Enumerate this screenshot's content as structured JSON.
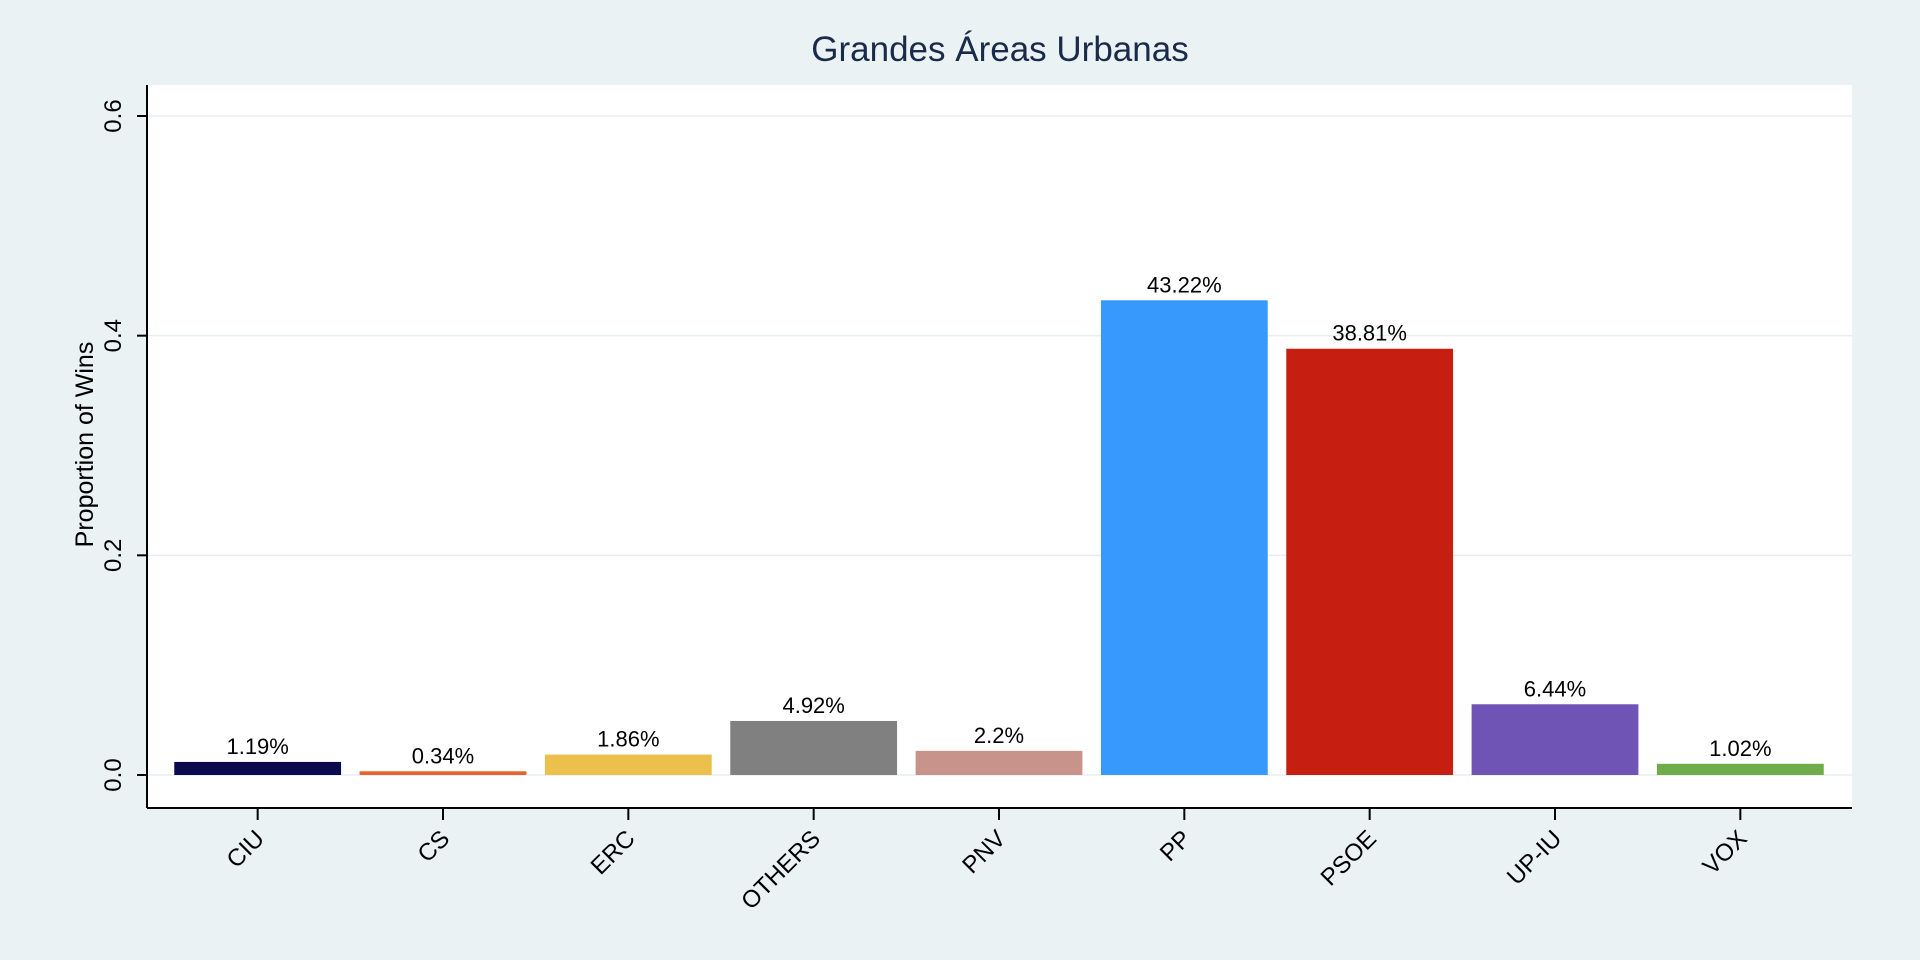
{
  "chart_data": {
    "type": "bar",
    "title": "Grandes Áreas Urbanas",
    "xlabel": "",
    "ylabel": "Proportion of Wins",
    "ylim": [
      -0.06,
      0.63
    ],
    "yticks": [
      0,
      0.2,
      0.4,
      0.6
    ],
    "ytick_labels": [
      "0.0",
      "0.2",
      "0.4",
      "0.6"
    ],
    "grid": true,
    "legend": "none",
    "categories": [
      "CIU",
      "CS",
      "ERC",
      "OTHERS",
      "PNV",
      "PP",
      "PSOE",
      "UP-IU",
      "VOX"
    ],
    "values": [
      0.0119,
      0.0034,
      0.0186,
      0.0492,
      0.022,
      0.4322,
      0.3881,
      0.0644,
      0.0102
    ],
    "value_labels": [
      "1.19%",
      "0.34%",
      "1.86%",
      "4.92%",
      "2.2%",
      "43.22%",
      "38.81%",
      "6.44%",
      "1.02%"
    ],
    "colors": [
      "#0b0a4f",
      "#e8622e",
      "#ecc04c",
      "#808080",
      "#c8938a",
      "#3799fc",
      "#c61f12",
      "#6f54b6",
      "#6ead4a"
    ]
  }
}
